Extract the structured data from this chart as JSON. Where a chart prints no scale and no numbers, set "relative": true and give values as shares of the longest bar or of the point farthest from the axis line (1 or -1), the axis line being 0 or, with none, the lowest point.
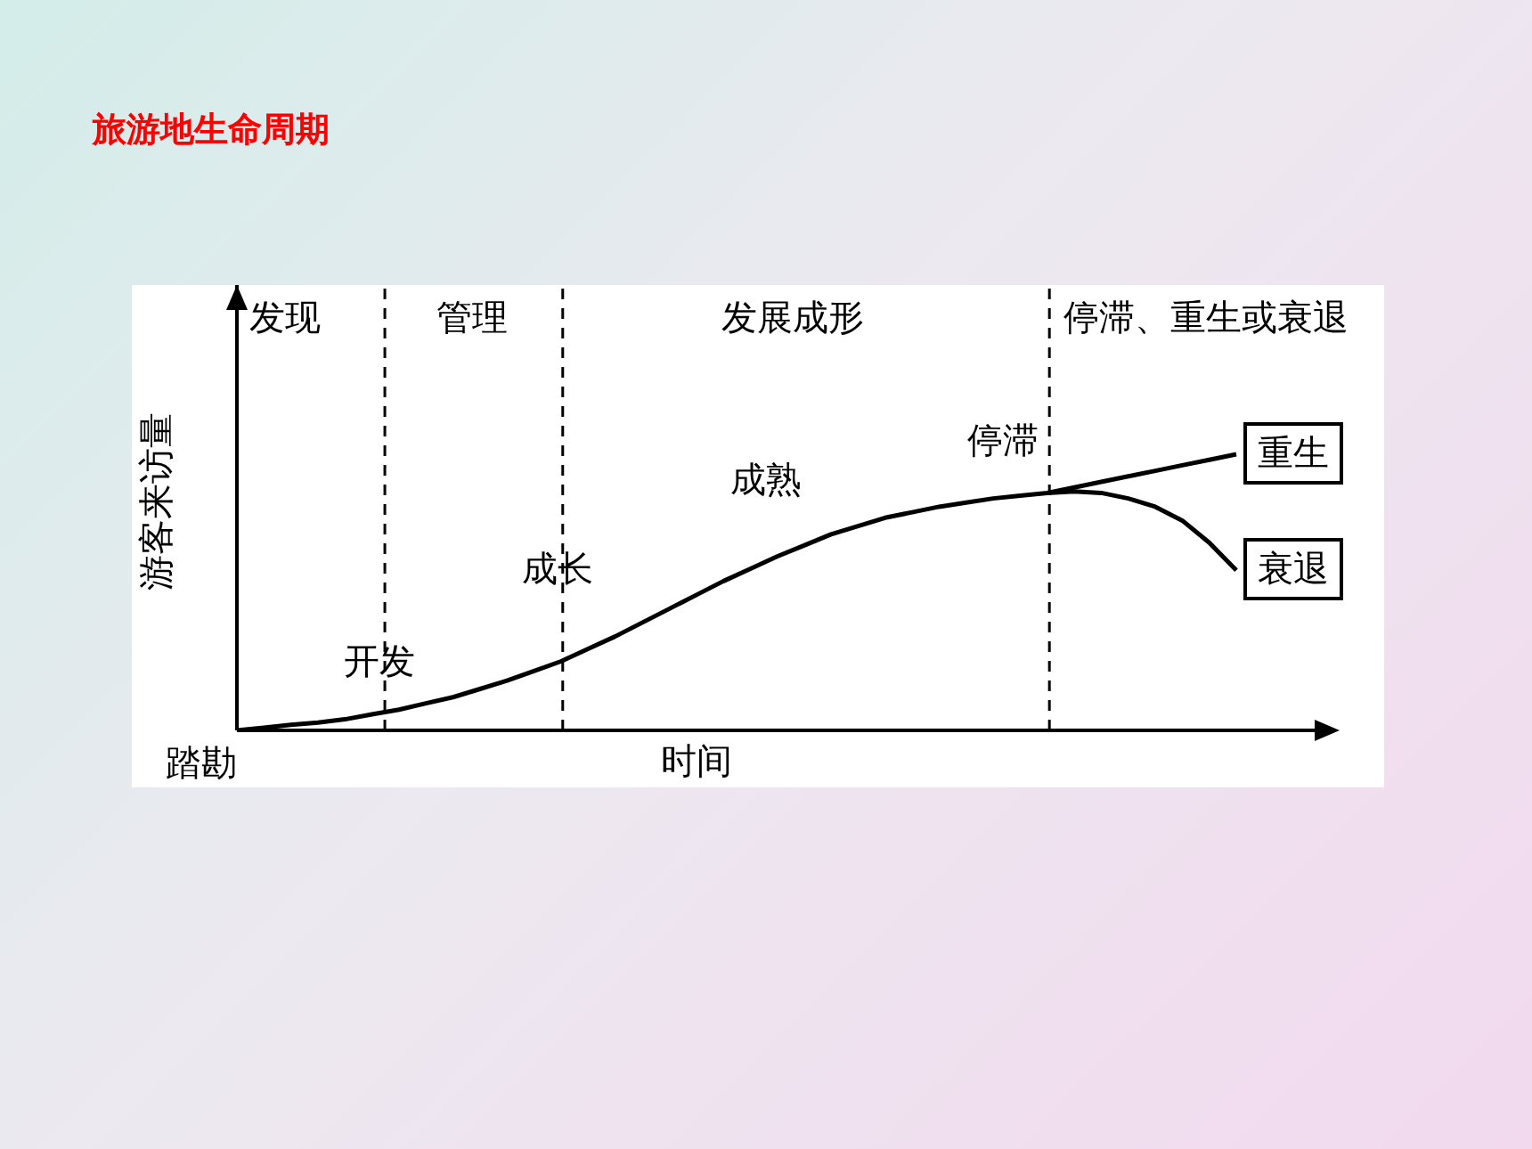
{
  "chart_data": {
    "type": "line",
    "title": "旅游地生命周期",
    "xlabel": "时间",
    "ylabel": "游客来访量",
    "relative": true,
    "marker": "none",
    "line_style": "solid",
    "categories": [
      null,
      null,
      null,
      null,
      null,
      null,
      null,
      null,
      null,
      null,
      null,
      null,
      null,
      null,
      null,
      null,
      null,
      null,
      null,
      null,
      null,
      null,
      null,
      null,
      null,
      null,
      null,
      null,
      null,
      null,
      null,
      null,
      null,
      null,
      null,
      null,
      null,
      null
    ],
    "annotations": [
      "发现",
      "管理",
      "发展成形",
      "停滞、重生或衰退",
      "踏勘",
      "开发",
      "成长",
      "成熟",
      "停滞"
    ],
    "series": [
      {
        "name": "重生",
        "color": "#000000",
        "values": [
          0,
          0.01,
          0.02,
          0.028,
          0.04,
          0.058,
          0.075,
          0.098,
          0.12,
          0.15,
          0.18,
          0.215,
          0.25,
          0.295,
          0.34,
          0.39,
          0.44,
          0.49,
          0.54,
          0.585,
          0.63,
          0.67,
          0.71,
          0.74,
          0.77,
          0.79,
          0.81,
          0.825,
          0.84,
          0.85,
          0.86,
          0.88,
          0.9,
          0.92,
          0.94,
          0.96,
          0.98,
          1
        ]
      },
      {
        "name": "衰退",
        "color": "#000000",
        "values": [
          null,
          null,
          null,
          null,
          null,
          null,
          null,
          null,
          null,
          null,
          null,
          null,
          null,
          null,
          null,
          null,
          null,
          null,
          null,
          null,
          null,
          null,
          null,
          null,
          null,
          null,
          null,
          null,
          null,
          null,
          0.86,
          0.865,
          0.86,
          0.84,
          0.81,
          0.76,
          0.68,
          0.58
        ]
      }
    ]
  }
}
